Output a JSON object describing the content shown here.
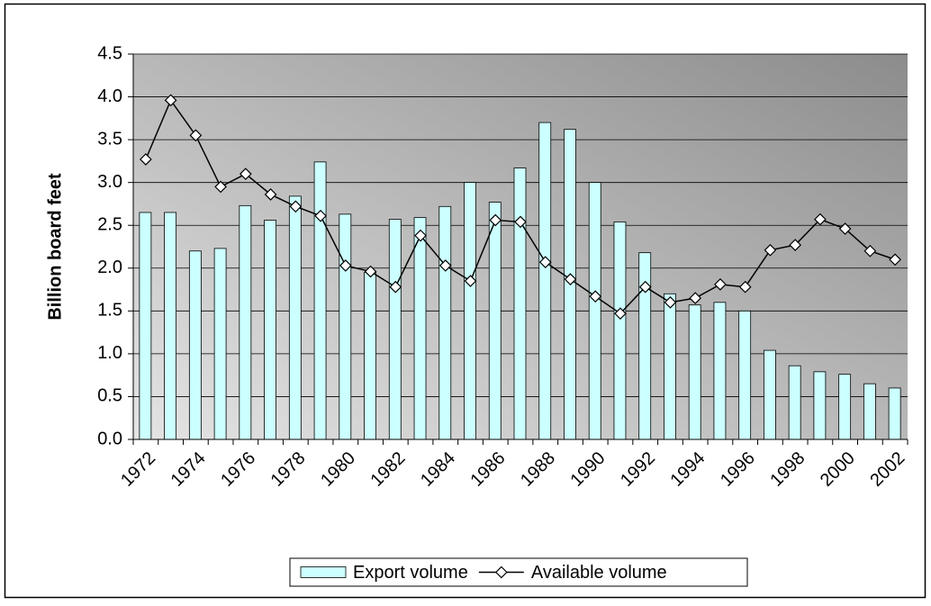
{
  "chart_data": {
    "type": "bar",
    "y_label": "Billion board feet",
    "categories": [
      "1972",
      null,
      "1974",
      null,
      "1976",
      null,
      "1978",
      null,
      "1980",
      null,
      "1982",
      null,
      "1984",
      null,
      "1986",
      null,
      "1988",
      null,
      "1990",
      null,
      "1992",
      null,
      "1994",
      null,
      "1996",
      null,
      "1998",
      null,
      "2000",
      null,
      "2002"
    ],
    "series": [
      {
        "name": "Export volume",
        "type": "bar",
        "color": "#ccffff",
        "values": [
          2.65,
          2.65,
          2.2,
          2.23,
          2.73,
          2.56,
          2.84,
          3.24,
          2.63,
          1.95,
          2.57,
          2.59,
          2.72,
          3.0,
          2.77,
          3.17,
          3.7,
          3.62,
          3.0,
          2.54,
          2.18,
          1.7,
          1.57,
          1.6,
          1.5,
          1.04,
          0.86,
          0.79,
          0.76,
          0.65,
          0.6
        ]
      },
      {
        "name": "Available volume",
        "type": "line",
        "color": "#000000",
        "values": [
          3.27,
          3.96,
          3.55,
          2.95,
          3.1,
          2.86,
          2.72,
          2.61,
          2.03,
          1.96,
          1.78,
          2.38,
          2.03,
          1.85,
          2.56,
          2.54,
          2.07,
          1.87,
          1.67,
          1.47,
          1.78,
          1.6,
          1.65,
          1.81,
          1.78,
          2.21,
          2.27,
          2.57,
          2.46,
          2.2,
          2.1
        ]
      }
    ],
    "ylim": [
      0,
      4.5
    ],
    "yticks": [
      {
        "value": 0,
        "label": "0.0"
      },
      0.5,
      {
        "value": 1,
        "label": "1.0"
      },
      1.5,
      {
        "value": 2,
        "label": "2.0"
      },
      2.5,
      {
        "value": 3,
        "label": "3.0"
      },
      3.5,
      {
        "value": 4,
        "label": "4.0"
      },
      4.5
    ],
    "grid": true,
    "legend": "bottom"
  }
}
